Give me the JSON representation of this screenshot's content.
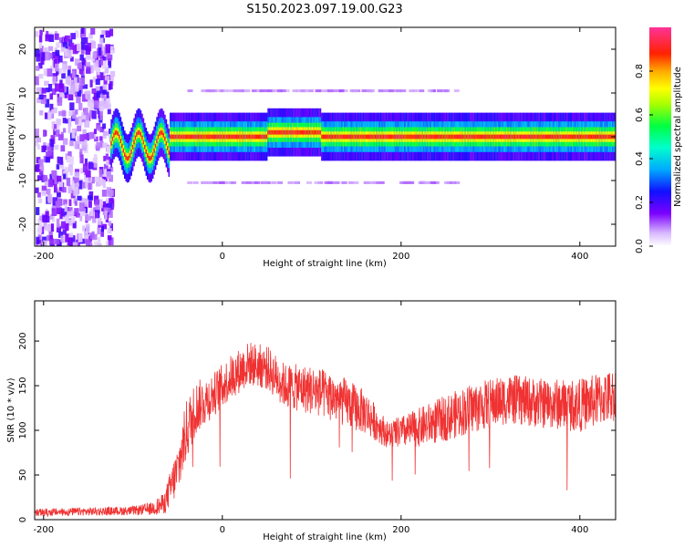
{
  "title": "S150.2023.097.19.00.G23",
  "colors": {
    "snr_line": "#f03232",
    "axis": "#000000"
  },
  "chart_data": [
    {
      "type": "heatmap",
      "xlabel": "Height of straight line (km)",
      "ylabel": "Frequency (Hz)",
      "xlim": [
        -210,
        440
      ],
      "ylim": [
        -25,
        25
      ],
      "x_ticks": [
        "-200",
        "0",
        "200",
        "400"
      ],
      "y_ticks": [
        "-20",
        "-10",
        "0",
        "10",
        "20"
      ],
      "colorbar": {
        "label": "Normalized spectral amplitude",
        "range": [
          0,
          1
        ],
        "ticks": [
          "0.0",
          "0.2",
          "0.4",
          "0.6",
          "0.8"
        ]
      },
      "features": {
        "noise_region_x": [
          -210,
          -125
        ],
        "main_line_freq_hz": 0,
        "sidebands_freq_hz": [
          10.5,
          -10.5
        ]
      }
    },
    {
      "type": "line",
      "xlabel": "Height of straight line (km)",
      "ylabel": "SNR (10 * v/v)",
      "xlim": [
        -210,
        440
      ],
      "ylim": [
        0,
        245
      ],
      "x_ticks": [
        "-200",
        "0",
        "200",
        "400"
      ],
      "y_ticks": [
        "0",
        "50",
        "100",
        "150",
        "200"
      ],
      "series": [
        {
          "envelope_x": [
            -210,
            -100,
            -80,
            -65,
            -50,
            -40,
            -30,
            -10,
            10,
            30,
            50,
            70,
            100,
            130,
            160,
            185,
            210,
            240,
            280,
            320,
            360,
            400,
            440
          ],
          "envelope_mean": [
            8,
            10,
            12,
            18,
            55,
            100,
            125,
            140,
            160,
            175,
            170,
            150,
            145,
            135,
            120,
            95,
            100,
            110,
            125,
            135,
            130,
            128,
            140
          ],
          "envelope_amp": [
            4,
            5,
            7,
            12,
            30,
            35,
            30,
            25,
            25,
            25,
            25,
            25,
            28,
            28,
            25,
            15,
            20,
            25,
            28,
            28,
            28,
            30,
            30
          ]
        }
      ]
    }
  ]
}
